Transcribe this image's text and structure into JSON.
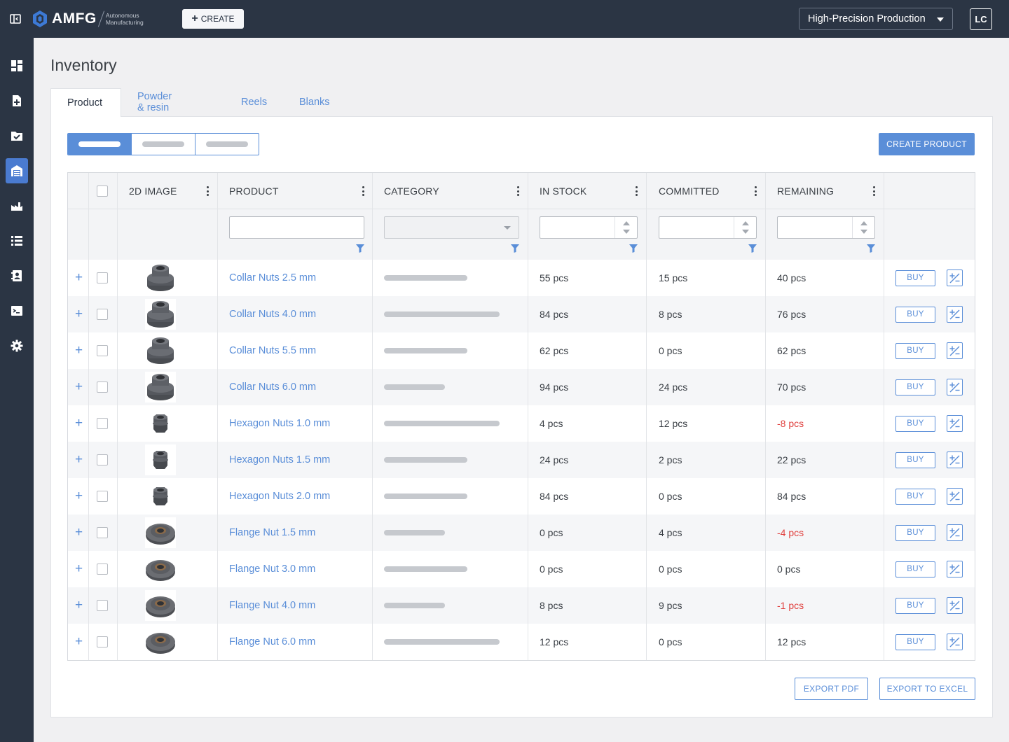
{
  "header": {
    "brand": "AMFG",
    "brand_sub_1": "Autonomous",
    "brand_sub_2": "Manufacturing",
    "create_label": "CREATE",
    "production_select": "High-Precision Production",
    "avatar_initials": "LC"
  },
  "sidebar": {
    "items": [
      {
        "icon": "dashboard-icon",
        "active": false
      },
      {
        "icon": "add-file-icon",
        "active": false
      },
      {
        "icon": "checked-folder-icon",
        "active": false
      },
      {
        "icon": "warehouse-icon",
        "active": true
      },
      {
        "icon": "factory-icon",
        "active": false
      },
      {
        "icon": "list-icon",
        "active": false
      },
      {
        "icon": "contacts-icon",
        "active": false
      },
      {
        "icon": "terminal-icon",
        "active": false
      },
      {
        "icon": "gear-icon",
        "active": false
      }
    ]
  },
  "page": {
    "title": "Inventory",
    "tabs": [
      {
        "label": "Product",
        "active": true
      },
      {
        "label": "Powder & resin",
        "active": false
      },
      {
        "label": "Reels",
        "active": false
      },
      {
        "label": "Blanks",
        "active": false
      }
    ],
    "create_product_label": "CREATE PRODUCT",
    "export_pdf_label": "EXPORT PDF",
    "export_excel_label": "EXPORT TO EXCEL"
  },
  "table": {
    "columns": [
      "2D IMAGE",
      "PRODUCT",
      "CATEGORY",
      "IN STOCK",
      "COMMITTED",
      "REMAINING"
    ],
    "buy_label": "BUY",
    "rows": [
      {
        "product": "Collar Nuts 2.5 mm",
        "image": "collar-nut",
        "category_bar": 0.58,
        "in_stock": "55 pcs",
        "committed": "15 pcs",
        "remaining": "40 pcs",
        "negative": false
      },
      {
        "product": "Collar Nuts 4.0 mm",
        "image": "collar-nut",
        "category_bar": 0.8,
        "in_stock": "84 pcs",
        "committed": "8 pcs",
        "remaining": "76 pcs",
        "negative": false
      },
      {
        "product": "Collar Nuts 5.5 mm",
        "image": "collar-nut",
        "category_bar": 0.58,
        "in_stock": "62 pcs",
        "committed": "0 pcs",
        "remaining": "62 pcs",
        "negative": false
      },
      {
        "product": "Collar Nuts 6.0 mm",
        "image": "collar-nut",
        "category_bar": 0.42,
        "in_stock": "94 pcs",
        "committed": "24 pcs",
        "remaining": "70 pcs",
        "negative": false
      },
      {
        "product": "Hexagon Nuts 1.0 mm",
        "image": "hex-nut",
        "category_bar": 0.8,
        "in_stock": "4 pcs",
        "committed": "12 pcs",
        "remaining": "-8 pcs",
        "negative": true
      },
      {
        "product": "Hexagon Nuts 1.5 mm",
        "image": "hex-nut",
        "category_bar": 0.58,
        "in_stock": "24 pcs",
        "committed": "2 pcs",
        "remaining": "22 pcs",
        "negative": false
      },
      {
        "product": "Hexagon Nuts 2.0 mm",
        "image": "hex-nut",
        "category_bar": 0.58,
        "in_stock": "84 pcs",
        "committed": "0 pcs",
        "remaining": "84 pcs",
        "negative": false
      },
      {
        "product": "Flange Nut 1.5 mm",
        "image": "flange-nut",
        "category_bar": 0.42,
        "in_stock": "0 pcs",
        "committed": "4 pcs",
        "remaining": "-4 pcs",
        "negative": true
      },
      {
        "product": "Flange Nut 3.0 mm",
        "image": "flange-nut",
        "category_bar": 0.58,
        "in_stock": "0 pcs",
        "committed": "0 pcs",
        "remaining": "0 pcs",
        "negative": false
      },
      {
        "product": "Flange Nut 4.0 mm",
        "image": "flange-nut",
        "category_bar": 0.42,
        "in_stock": "8 pcs",
        "committed": "9 pcs",
        "remaining": "-1 pcs",
        "negative": true
      },
      {
        "product": "Flange Nut 6.0 mm",
        "image": "flange-nut",
        "category_bar": 0.8,
        "in_stock": "12 pcs",
        "committed": "0 pcs",
        "remaining": "12 pcs",
        "negative": false
      }
    ]
  },
  "colors": {
    "topbar": "#2b3544",
    "accent": "#5a8ed8",
    "negative": "#e0413f"
  }
}
